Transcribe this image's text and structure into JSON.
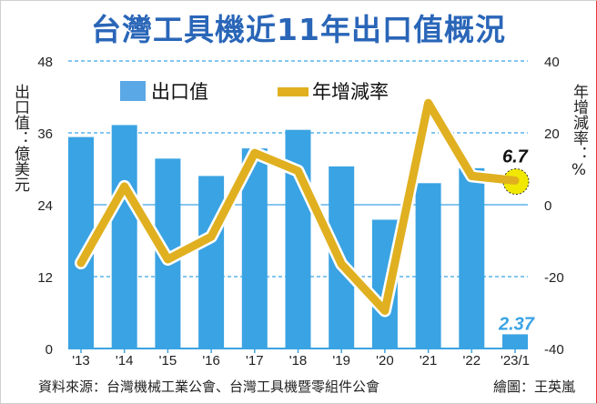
{
  "title": "台灣工具機近11年出口值概況",
  "source": "資料來源：台灣機械工業公會、台灣工具機暨零組件公會",
  "credit": "繪圖：王英嵐",
  "chart_data": {
    "type": "bar+line",
    "title": "台灣工具機近11年出口值概況",
    "categories": [
      "'13",
      "'14",
      "'15",
      "'16",
      "'17",
      "'18",
      "'19",
      "'20",
      "'21",
      "'22",
      "'23/1"
    ],
    "series": [
      {
        "name": "出口值",
        "type": "bar",
        "axis": "left",
        "color": "#3aa3e3",
        "values": [
          35.3,
          37.3,
          31.7,
          28.8,
          33.4,
          36.5,
          30.4,
          21.5,
          27.6,
          30.1,
          2.37
        ]
      },
      {
        "name": "年增減率",
        "type": "line",
        "axis": "right",
        "color": "#e0b020",
        "values": [
          -16.2,
          5.1,
          -15.2,
          -8.9,
          14.4,
          9.4,
          -16.5,
          -29.5,
          28.3,
          8.0,
          6.7
        ]
      }
    ],
    "ylabel_left": "出口值：億美元",
    "ylabel_right": "年增減率：%",
    "ylim_left": [
      0,
      48
    ],
    "yticks_left": [
      "0",
      "12",
      "24",
      "36",
      "48"
    ],
    "ylim_right": [
      -40,
      40
    ],
    "yticks_right": [
      "-40",
      "-20",
      "0",
      "20",
      "40"
    ],
    "annotations": [
      {
        "label": "6.7",
        "series": "年增減率",
        "category": "'23/1"
      },
      {
        "label": "2.37",
        "series": "出口值",
        "category": "'23/1"
      }
    ],
    "grid": true,
    "legend": "top"
  }
}
